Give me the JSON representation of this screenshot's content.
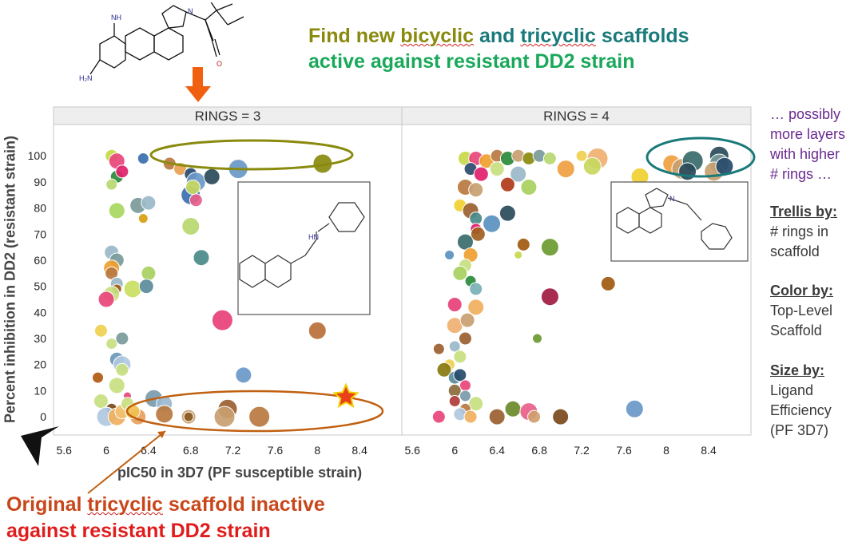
{
  "headline": {
    "line1_parts": [
      "Find new ",
      "bicyclic",
      " and ",
      "tricyclic",
      " scaffolds"
    ],
    "line2": "active against resistant DD2 strain"
  },
  "bottom": {
    "line1_parts": [
      "Original ",
      "tricyclic",
      " scaffold inactive"
    ],
    "line2": "against resistant DD2 strain"
  },
  "side_notes": {
    "more": [
      "… possibly",
      "more layers",
      "with higher",
      "# rings …"
    ],
    "trellis_title": "Trellis by:",
    "trellis_lines": [
      "# rings in",
      "scaffold"
    ],
    "color_title": "Color by:",
    "color_lines": [
      "Top-Level",
      "Scaffold"
    ],
    "size_title": "Size by:",
    "size_lines": [
      "Ligand",
      "Efficiency",
      "(PF 3D7)"
    ]
  },
  "colors": {
    "olive": "#8a8a0f",
    "teal": "#1a7a7a",
    "orange_arrow": "#f06010",
    "ellipse_bottom": "#c06010",
    "star": "#e8401a",
    "star_outline": "#f0d000"
  },
  "chart_data": {
    "type": "scatter",
    "xlabel": "pIC50 in 3D7 (PF susceptible strain)",
    "ylabel": "Percent inhibition in DD2 (resistant strain)",
    "xlim": [
      5.5,
      8.8
    ],
    "ylim": [
      -7,
      112
    ],
    "x_ticks": [
      5.6,
      6,
      6.4,
      6.8,
      7.2,
      7.6,
      8,
      8.4
    ],
    "y_ticks": [
      0,
      10,
      20,
      30,
      40,
      50,
      60,
      70,
      80,
      90,
      100
    ],
    "panels": [
      {
        "title": "RINGS = 3",
        "points": [
          {
            "x": 6.05,
            "y": 100,
            "s": 8,
            "c": "#c8d84a"
          },
          {
            "x": 6.1,
            "y": 98,
            "s": 10,
            "c": "#e8457a"
          },
          {
            "x": 6.35,
            "y": 99,
            "s": 7,
            "c": "#3a6fb0"
          },
          {
            "x": 6.1,
            "y": 92,
            "s": 8,
            "c": "#2a8a3a"
          },
          {
            "x": 6.15,
            "y": 94,
            "s": 8,
            "c": "#e0206a"
          },
          {
            "x": 6.05,
            "y": 89,
            "s": 7,
            "c": "#b8d870"
          },
          {
            "x": 6.1,
            "y": 79,
            "s": 10,
            "c": "#a8d860"
          },
          {
            "x": 6.3,
            "y": 81,
            "s": 10,
            "c": "#7a9a9a"
          },
          {
            "x": 6.4,
            "y": 82,
            "s": 9,
            "c": "#9ab8c8"
          },
          {
            "x": 6.35,
            "y": 76,
            "s": 6,
            "c": "#d8a010"
          },
          {
            "x": 6.6,
            "y": 97,
            "s": 8,
            "c": "#b87840"
          },
          {
            "x": 6.7,
            "y": 95,
            "s": 8,
            "c": "#e8a050"
          },
          {
            "x": 6.8,
            "y": 93,
            "s": 8,
            "c": "#264a6a"
          },
          {
            "x": 6.85,
            "y": 90,
            "s": 12,
            "c": "#6a98c8"
          },
          {
            "x": 6.8,
            "y": 85,
            "s": 12,
            "c": "#3a6fb0"
          },
          {
            "x": 6.85,
            "y": 83,
            "s": 8,
            "c": "#e8608a"
          },
          {
            "x": 6.82,
            "y": 88,
            "s": 9,
            "c": "#c8d860"
          },
          {
            "x": 7.0,
            "y": 92,
            "s": 10,
            "c": "#2a4a5a"
          },
          {
            "x": 6.8,
            "y": 73,
            "s": 11,
            "c": "#b8d870"
          },
          {
            "x": 6.9,
            "y": 61,
            "s": 10,
            "c": "#4a8a8a"
          },
          {
            "x": 7.25,
            "y": 95,
            "s": 12,
            "c": "#6a98c8"
          },
          {
            "x": 8.05,
            "y": 97,
            "s": 12,
            "c": "#8a8a0f"
          },
          {
            "x": 6.05,
            "y": 63,
            "s": 9,
            "c": "#9ab8c8"
          },
          {
            "x": 6.1,
            "y": 60,
            "s": 9,
            "c": "#7a9a9a"
          },
          {
            "x": 6.05,
            "y": 57,
            "s": 10,
            "c": "#f0a030"
          },
          {
            "x": 6.05,
            "y": 55,
            "s": 8,
            "c": "#b87840"
          },
          {
            "x": 6.1,
            "y": 51,
            "s": 8,
            "c": "#9ab8c8"
          },
          {
            "x": 6.1,
            "y": 49,
            "s": 6,
            "c": "#a05a10"
          },
          {
            "x": 6.05,
            "y": 47,
            "s": 10,
            "c": "#c8e080"
          },
          {
            "x": 6.0,
            "y": 45,
            "s": 10,
            "c": "#e8457a"
          },
          {
            "x": 6.25,
            "y": 49,
            "s": 11,
            "c": "#c8e060"
          },
          {
            "x": 6.4,
            "y": 55,
            "s": 9,
            "c": "#a8d060"
          },
          {
            "x": 6.38,
            "y": 50,
            "s": 9,
            "c": "#5a8a9a"
          },
          {
            "x": 7.1,
            "y": 37,
            "s": 13,
            "c": "#e8407a"
          },
          {
            "x": 8.0,
            "y": 33,
            "s": 11,
            "c": "#b8703a"
          },
          {
            "x": 5.95,
            "y": 33,
            "s": 8,
            "c": "#f0d050"
          },
          {
            "x": 6.05,
            "y": 28,
            "s": 7,
            "c": "#c8e080"
          },
          {
            "x": 6.15,
            "y": 30,
            "s": 8,
            "c": "#7a9a9a"
          },
          {
            "x": 6.1,
            "y": 22,
            "s": 9,
            "c": "#6a98b8"
          },
          {
            "x": 6.15,
            "y": 20,
            "s": 11,
            "c": "#b0c8e0"
          },
          {
            "x": 6.15,
            "y": 18,
            "s": 8,
            "c": "#c8e080"
          },
          {
            "x": 7.3,
            "y": 16,
            "s": 10,
            "c": "#6a98c8"
          },
          {
            "x": 5.92,
            "y": 15,
            "s": 7,
            "c": "#b05a10"
          },
          {
            "x": 6.1,
            "y": 12,
            "s": 10,
            "c": "#c8e080"
          },
          {
            "x": 6.2,
            "y": 8,
            "s": 5,
            "c": "#e8457a"
          },
          {
            "x": 5.95,
            "y": 6,
            "s": 9,
            "c": "#c8e080"
          },
          {
            "x": 6.05,
            "y": 3,
            "s": 7,
            "c": "#7a4a1a"
          },
          {
            "x": 6.0,
            "y": 0,
            "s": 12,
            "c": "#b0c8e0"
          },
          {
            "x": 6.1,
            "y": 0,
            "s": 11,
            "c": "#f0b060"
          },
          {
            "x": 6.15,
            "y": 2,
            "s": 9,
            "c": "#f0c070"
          },
          {
            "x": 6.2,
            "y": 5,
            "s": 8,
            "c": "#c8e080"
          },
          {
            "x": 6.3,
            "y": 0,
            "s": 10,
            "c": "#e8a060"
          },
          {
            "x": 6.25,
            "y": 2,
            "s": 9,
            "c": "#f0c050"
          },
          {
            "x": 6.45,
            "y": 7,
            "s": 11,
            "c": "#7a9aaa"
          },
          {
            "x": 6.55,
            "y": 5,
            "s": 10,
            "c": "#9ab8d0"
          },
          {
            "x": 6.55,
            "y": 1,
            "s": 11,
            "c": "#b87840"
          },
          {
            "x": 6.78,
            "y": 0,
            "s": 9,
            "c": "#c8a070"
          },
          {
            "x": 6.78,
            "y": 0,
            "s": 6,
            "c": "#8a5a20"
          },
          {
            "x": 7.15,
            "y": 3,
            "s": 12,
            "c": "#9a6030"
          },
          {
            "x": 7.12,
            "y": 0,
            "s": 13,
            "c": "#c8a070"
          },
          {
            "x": 7.45,
            "y": 0,
            "s": 13,
            "c": "#b87840"
          }
        ]
      },
      {
        "title": "RINGS = 4",
        "points": [
          {
            "x": 6.1,
            "y": 99,
            "s": 9,
            "c": "#c8d84a"
          },
          {
            "x": 6.2,
            "y": 99,
            "s": 9,
            "c": "#e8457a"
          },
          {
            "x": 6.3,
            "y": 98,
            "s": 9,
            "c": "#f0a030"
          },
          {
            "x": 6.4,
            "y": 100,
            "s": 8,
            "c": "#b87840"
          },
          {
            "x": 6.5,
            "y": 99,
            "s": 9,
            "c": "#2a8a3a"
          },
          {
            "x": 6.6,
            "y": 100,
            "s": 8,
            "c": "#c8a070"
          },
          {
            "x": 6.7,
            "y": 99,
            "s": 8,
            "c": "#8a8a0f"
          },
          {
            "x": 6.8,
            "y": 100,
            "s": 8,
            "c": "#7a9a9a"
          },
          {
            "x": 6.9,
            "y": 99,
            "s": 8,
            "c": "#b8d870"
          },
          {
            "x": 7.2,
            "y": 100,
            "s": 7,
            "c": "#f0d050"
          },
          {
            "x": 7.35,
            "y": 99,
            "s": 13,
            "c": "#f0b070"
          },
          {
            "x": 7.3,
            "y": 96,
            "s": 11,
            "c": "#c8d860"
          },
          {
            "x": 7.05,
            "y": 95,
            "s": 11,
            "c": "#f0a040"
          },
          {
            "x": 7.75,
            "y": 92,
            "s": 11,
            "c": "#f0d030"
          },
          {
            "x": 6.15,
            "y": 95,
            "s": 8,
            "c": "#2a4a6a"
          },
          {
            "x": 6.25,
            "y": 93,
            "s": 9,
            "c": "#e0206a"
          },
          {
            "x": 6.4,
            "y": 95,
            "s": 9,
            "c": "#c8e080"
          },
          {
            "x": 6.6,
            "y": 93,
            "s": 10,
            "c": "#9ab8c8"
          },
          {
            "x": 6.5,
            "y": 89,
            "s": 9,
            "c": "#b03a1a"
          },
          {
            "x": 6.7,
            "y": 88,
            "s": 10,
            "c": "#a8d060"
          },
          {
            "x": 6.1,
            "y": 88,
            "s": 10,
            "c": "#b87840"
          },
          {
            "x": 6.2,
            "y": 87,
            "s": 9,
            "c": "#c8a070"
          },
          {
            "x": 6.05,
            "y": 81,
            "s": 8,
            "c": "#f0d030"
          },
          {
            "x": 6.15,
            "y": 79,
            "s": 10,
            "c": "#9a6030"
          },
          {
            "x": 6.2,
            "y": 76,
            "s": 8,
            "c": "#4a8a8a"
          },
          {
            "x": 6.2,
            "y": 72,
            "s": 7,
            "c": "#e0206a"
          },
          {
            "x": 6.22,
            "y": 70,
            "s": 9,
            "c": "#a06020"
          },
          {
            "x": 6.1,
            "y": 67,
            "s": 10,
            "c": "#3a6a6a"
          },
          {
            "x": 6.35,
            "y": 74,
            "s": 11,
            "c": "#5a90c0"
          },
          {
            "x": 6.5,
            "y": 78,
            "s": 10,
            "c": "#2a4a5a"
          },
          {
            "x": 6.15,
            "y": 62,
            "s": 9,
            "c": "#f0a030"
          },
          {
            "x": 5.95,
            "y": 62,
            "s": 6,
            "c": "#5a90c0"
          },
          {
            "x": 6.1,
            "y": 58,
            "s": 8,
            "c": "#c8e080"
          },
          {
            "x": 6.05,
            "y": 55,
            "s": 9,
            "c": "#a8d060"
          },
          {
            "x": 6.15,
            "y": 52,
            "s": 7,
            "c": "#2a8a3a"
          },
          {
            "x": 6.2,
            "y": 49,
            "s": 8,
            "c": "#7ab0b8"
          },
          {
            "x": 6.65,
            "y": 66,
            "s": 8,
            "c": "#a05a10"
          },
          {
            "x": 6.6,
            "y": 62,
            "s": 5,
            "c": "#c8d84a"
          },
          {
            "x": 6.9,
            "y": 65,
            "s": 11,
            "c": "#6a9a30"
          },
          {
            "x": 7.45,
            "y": 51,
            "s": 9,
            "c": "#a05a10"
          },
          {
            "x": 6.9,
            "y": 46,
            "s": 11,
            "c": "#a01a40"
          },
          {
            "x": 6.0,
            "y": 43,
            "s": 9,
            "c": "#e8407a"
          },
          {
            "x": 6.2,
            "y": 42,
            "s": 10,
            "c": "#f0b060"
          },
          {
            "x": 6.0,
            "y": 35,
            "s": 10,
            "c": "#f0b070"
          },
          {
            "x": 6.12,
            "y": 37,
            "s": 9,
            "c": "#c8a070"
          },
          {
            "x": 6.1,
            "y": 30,
            "s": 8,
            "c": "#9a6030"
          },
          {
            "x": 6.78,
            "y": 30,
            "s": 6,
            "c": "#6a9a30"
          },
          {
            "x": 5.85,
            "y": 26,
            "s": 7,
            "c": "#9a6030"
          },
          {
            "x": 6.0,
            "y": 27,
            "s": 7,
            "c": "#9ab8c8"
          },
          {
            "x": 6.05,
            "y": 23,
            "s": 8,
            "c": "#c8e080"
          },
          {
            "x": 5.95,
            "y": 20,
            "s": 7,
            "c": "#f0d050"
          },
          {
            "x": 5.9,
            "y": 18,
            "s": 9,
            "c": "#8a7a10"
          },
          {
            "x": 6.0,
            "y": 15,
            "s": 8,
            "c": "#5a8a9a"
          },
          {
            "x": 6.05,
            "y": 16,
            "s": 8,
            "c": "#264a6a"
          },
          {
            "x": 6.1,
            "y": 12,
            "s": 7,
            "c": "#e8457a"
          },
          {
            "x": 6.0,
            "y": 10,
            "s": 8,
            "c": "#8a6a3a"
          },
          {
            "x": 6.1,
            "y": 8,
            "s": 7,
            "c": "#7a9aaa"
          },
          {
            "x": 6.0,
            "y": 6,
            "s": 7,
            "c": "#b03a3a"
          },
          {
            "x": 6.2,
            "y": 5,
            "s": 9,
            "c": "#c8e080"
          },
          {
            "x": 6.1,
            "y": 3,
            "s": 7,
            "c": "#b87840"
          },
          {
            "x": 6.05,
            "y": 1,
            "s": 8,
            "c": "#b0c8e0"
          },
          {
            "x": 6.15,
            "y": 0,
            "s": 8,
            "c": "#f0b060"
          },
          {
            "x": 5.85,
            "y": 0,
            "s": 8,
            "c": "#e8457a"
          },
          {
            "x": 6.4,
            "y": 0,
            "s": 10,
            "c": "#9a6030"
          },
          {
            "x": 6.55,
            "y": 3,
            "s": 10,
            "c": "#6a8a2a"
          },
          {
            "x": 6.7,
            "y": 2,
            "s": 11,
            "c": "#e8608a"
          },
          {
            "x": 6.75,
            "y": 0,
            "s": 8,
            "c": "#d0a070"
          },
          {
            "x": 7.0,
            "y": 0,
            "s": 10,
            "c": "#7a4a1a"
          },
          {
            "x": 7.7,
            "y": 3,
            "s": 11,
            "c": "#6a98c8"
          },
          {
            "x": 8.05,
            "y": 97,
            "s": 11,
            "c": "#f0a040"
          },
          {
            "x": 8.15,
            "y": 95,
            "s": 13,
            "c": "#c8a070"
          },
          {
            "x": 8.25,
            "y": 98,
            "s": 13,
            "c": "#3a6a6a"
          },
          {
            "x": 8.2,
            "y": 94,
            "s": 11,
            "c": "#2a4a5a"
          },
          {
            "x": 8.5,
            "y": 100,
            "s": 12,
            "c": "#2a4a5a"
          },
          {
            "x": 8.5,
            "y": 97,
            "s": 12,
            "c": "#7a9a9a"
          },
          {
            "x": 8.45,
            "y": 94,
            "s": 12,
            "c": "#c8a070"
          },
          {
            "x": 8.55,
            "y": 96,
            "s": 11,
            "c": "#264a6a"
          }
        ]
      }
    ]
  }
}
